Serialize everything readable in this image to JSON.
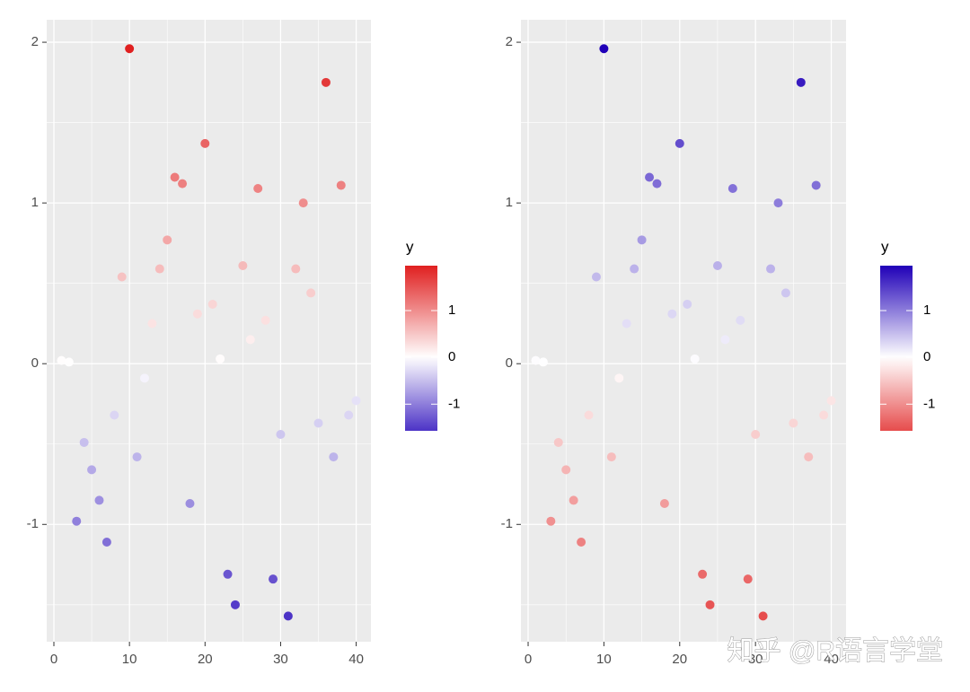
{
  "chart_data": [
    {
      "type": "scatter",
      "x": [
        1,
        2,
        3,
        4,
        5,
        6,
        7,
        8,
        9,
        10,
        11,
        12,
        13,
        14,
        15,
        16,
        17,
        18,
        19,
        20,
        21,
        22,
        23,
        24,
        25,
        26,
        27,
        28,
        29,
        30,
        31,
        32,
        33,
        34,
        35,
        36,
        37,
        38,
        39,
        40
      ],
      "values": [
        0.02,
        0.01,
        -0.98,
        -0.49,
        -0.66,
        -0.85,
        -1.11,
        -0.32,
        0.54,
        1.96,
        -0.58,
        -0.09,
        0.25,
        0.59,
        0.77,
        1.16,
        1.12,
        -0.87,
        0.31,
        1.37,
        0.37,
        0.03,
        -1.31,
        -1.5,
        0.61,
        0.15,
        1.09,
        0.27,
        -1.34,
        -0.44,
        -1.57,
        0.59,
        1.0,
        0.44,
        -0.37,
        1.75,
        -0.58,
        1.11,
        -0.32,
        -0.23
      ],
      "xlim": [
        -0.95,
        41.95
      ],
      "ylim": [
        -1.73,
        2.14
      ],
      "xticks": [
        0,
        10,
        20,
        30,
        40
      ],
      "yticks": [
        -1,
        0,
        1,
        2
      ],
      "xminor": [
        5,
        15,
        25,
        35
      ],
      "yminor": [
        -1.5,
        -0.5,
        0.5,
        1.5
      ],
      "grid": true,
      "legend_title": "y",
      "colorbar_ticks": [
        -1,
        0,
        1
      ],
      "color_low": "#2000b8",
      "color_mid": "#ffffff",
      "color_high": "#e02020",
      "midpoint": 0
    },
    {
      "type": "scatter",
      "x": [
        1,
        2,
        3,
        4,
        5,
        6,
        7,
        8,
        9,
        10,
        11,
        12,
        13,
        14,
        15,
        16,
        17,
        18,
        19,
        20,
        21,
        22,
        23,
        24,
        25,
        26,
        27,
        28,
        29,
        30,
        31,
        32,
        33,
        34,
        35,
        36,
        37,
        38,
        39,
        40
      ],
      "values": [
        0.02,
        0.01,
        -0.98,
        -0.49,
        -0.66,
        -0.85,
        -1.11,
        -0.32,
        0.54,
        1.96,
        -0.58,
        -0.09,
        0.25,
        0.59,
        0.77,
        1.16,
        1.12,
        -0.87,
        0.31,
        1.37,
        0.37,
        0.03,
        -1.31,
        -1.5,
        0.61,
        0.15,
        1.09,
        0.27,
        -1.34,
        -0.44,
        -1.57,
        0.59,
        1.0,
        0.44,
        -0.37,
        1.75,
        -0.58,
        1.11,
        -0.32,
        -0.23
      ],
      "xlim": [
        -0.95,
        41.95
      ],
      "ylim": [
        -1.73,
        2.14
      ],
      "xticks": [
        0,
        10,
        20,
        30,
        40
      ],
      "yticks": [
        -1,
        0,
        1,
        2
      ],
      "xminor": [
        5,
        15,
        25,
        35
      ],
      "yminor": [
        -1.5,
        -0.5,
        0.5,
        1.5
      ],
      "grid": true,
      "legend_title": "y",
      "colorbar_ticks": [
        -1,
        0,
        1
      ],
      "color_low": "#e02020",
      "color_mid": "#ffffff",
      "color_high": "#2000b8",
      "midpoint": 0
    }
  ],
  "watermark": "知乎 @R语言学堂"
}
